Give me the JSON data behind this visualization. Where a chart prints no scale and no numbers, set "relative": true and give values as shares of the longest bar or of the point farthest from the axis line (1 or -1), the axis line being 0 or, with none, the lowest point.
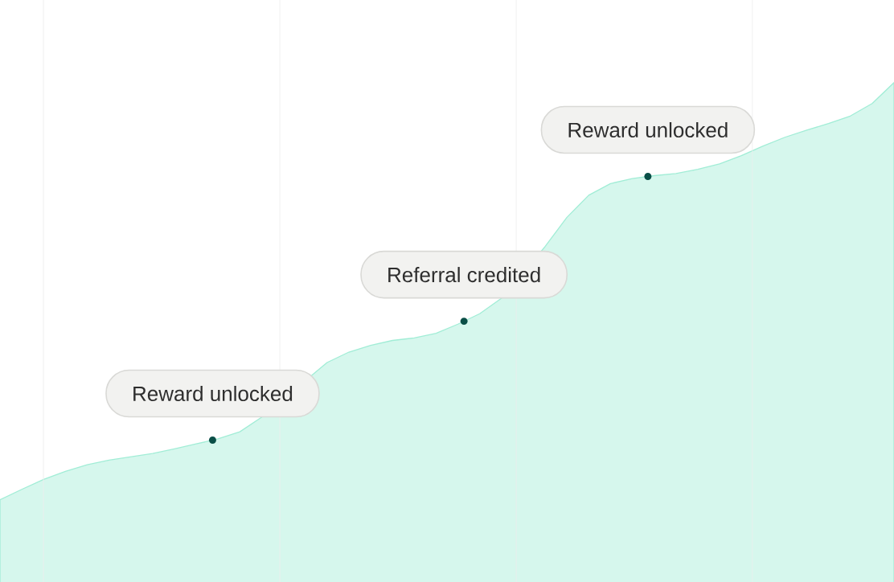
{
  "chart_data": {
    "type": "area",
    "relative": true,
    "categories": [
      null,
      null,
      null,
      null,
      null,
      null,
      null,
      null,
      null,
      null,
      null,
      null,
      null,
      null,
      null,
      null,
      null,
      null,
      null,
      null,
      null,
      null,
      null,
      null,
      null,
      null,
      null,
      null,
      null,
      null,
      null,
      null,
      null,
      null,
      null,
      null,
      null,
      null,
      null,
      null,
      null,
      null
    ],
    "values": [
      0,
      0.025,
      0.049,
      0.068,
      0.084,
      0.095,
      0.103,
      0.111,
      0.122,
      0.134,
      0.146,
      0.163,
      0.198,
      null,
      null,
      0.329,
      0.354,
      0.37,
      0.382,
      0.388,
      0.399,
      0.421,
      0.446,
      0.483,
      null,
      0.607,
      0.677,
      0.73,
      0.758,
      0.77,
      0.777,
      0.782,
      0.792,
      0.805,
      0.825,
      0.848,
      0.869,
      0.886,
      0.902,
      0.92,
      0.95,
      1
    ],
    "color": "#d6f7ed",
    "grid": "x",
    "annotations": [
      {
        "text": "Reward unlocked",
        "y": 0.143
      },
      {
        "text": "Referral credited",
        "y": 0.428
      },
      {
        "text": "Reward unlocked",
        "y": 0.775
      }
    ]
  }
}
